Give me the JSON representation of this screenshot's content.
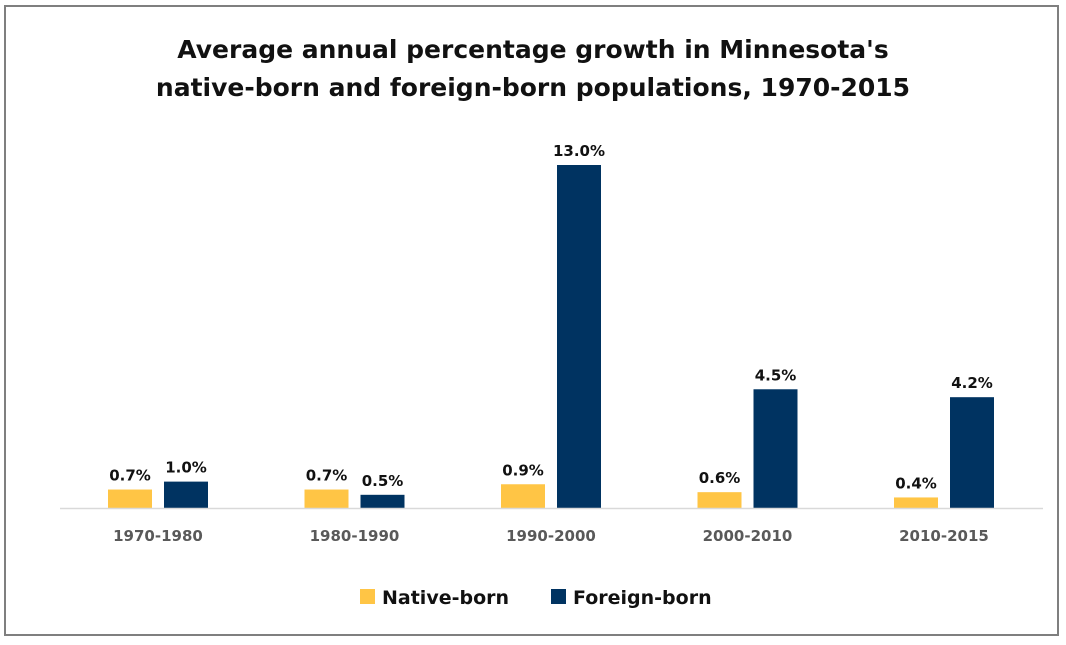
{
  "chart_data": {
    "type": "bar",
    "title": "Average annual percentage growth in Minnesota's native-born and foreign-born populations, 1970-2015",
    "title_lines": [
      "Average annual percentage growth in Minnesota's",
      "native-born and foreign-born populations, 1970-2015"
    ],
    "xlabel": "",
    "ylabel": "",
    "categories": [
      "1970-1980",
      "1980-1990",
      "1990-2000",
      "2000-2010",
      "2010-2015"
    ],
    "series": [
      {
        "name": "Native-born",
        "color": "#FFC545",
        "values": [
          0.7,
          0.7,
          0.9,
          0.6,
          0.4
        ],
        "labels": [
          "0.7%",
          "0.7%",
          "0.9%",
          "0.6%",
          "0.4%"
        ]
      },
      {
        "name": "Foreign-born",
        "color": "#003361",
        "values": [
          1.0,
          0.5,
          13.0,
          4.5,
          4.2
        ],
        "labels": [
          "1.0%",
          "0.5%",
          "13.0%",
          "4.5%",
          "4.2%"
        ]
      }
    ],
    "ylim": [
      0,
      13.0
    ],
    "y_axis_visible": false,
    "grid": false,
    "legend_position": "bottom-center",
    "value_format": "percent, one decimal"
  }
}
